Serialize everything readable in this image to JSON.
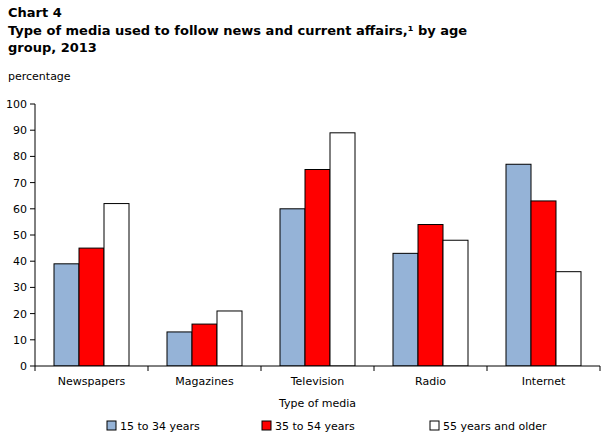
{
  "chart_data": {
    "type": "bar",
    "title": "Chart 4",
    "subtitle": "Type of media used to follow news and current affairs,¹ by age group, 2013",
    "y_label": "percentage",
    "x_label": "Type of media",
    "categories": [
      "Newspapers",
      "Magazines",
      "Television",
      "Radio",
      "Internet"
    ],
    "series": [
      {
        "name": "15 to 34 years",
        "color": "#95b3d7",
        "values": [
          39,
          13,
          60,
          43,
          77
        ]
      },
      {
        "name": "35 to 54 years",
        "color": "#ff0000",
        "values": [
          45,
          16,
          75,
          54,
          63
        ]
      },
      {
        "name": "55 years and older",
        "color": "#ffffff",
        "values": [
          62,
          21,
          89,
          48,
          36
        ]
      }
    ],
    "ylim": [
      0,
      100
    ],
    "yticks": [
      0,
      10,
      20,
      30,
      40,
      50,
      60,
      70,
      80,
      90,
      100
    ],
    "grid": false,
    "legend": "bottom"
  }
}
